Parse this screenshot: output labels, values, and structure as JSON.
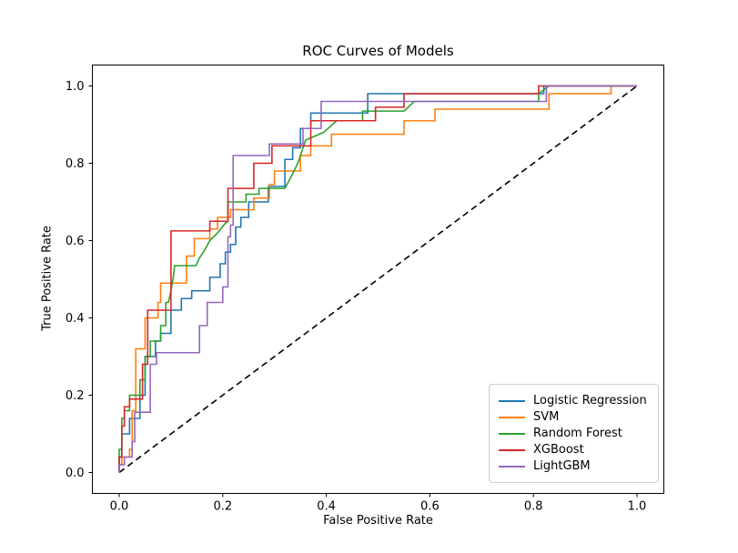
{
  "chart_data": {
    "type": "line",
    "title": "ROC Curves of Models",
    "xlabel": "False Positive Rate",
    "ylabel": "True Positive Rate",
    "xlim": [
      0,
      1
    ],
    "ylim": [
      0,
      1
    ],
    "grid": false,
    "x_ticks": {
      "values": [
        0.0,
        0.2,
        0.4,
        0.6,
        0.8,
        1.0
      ],
      "labels": [
        "0.0",
        "0.2",
        "0.4",
        "0.6",
        "0.8",
        "1.0"
      ]
    },
    "y_ticks": {
      "values": [
        0.0,
        0.2,
        0.4,
        0.6,
        0.8,
        1.0
      ],
      "labels": [
        "0.0",
        "0.2",
        "0.4",
        "0.6",
        "0.8",
        "1.0"
      ]
    },
    "legend": {
      "position": "lower right"
    },
    "reference_line": {
      "name": "chance-diagonal",
      "color": "#000000",
      "style": "dashed",
      "points": [
        [
          0,
          0
        ],
        [
          1,
          1
        ]
      ]
    },
    "series": [
      {
        "name": "Logistic Regression",
        "color": "#1f77b4",
        "points": [
          [
            0,
            0
          ],
          [
            0,
            0.04
          ],
          [
            0.005,
            0.04
          ],
          [
            0.005,
            0.1
          ],
          [
            0.02,
            0.1
          ],
          [
            0.02,
            0.14
          ],
          [
            0.04,
            0.14
          ],
          [
            0.04,
            0.2
          ],
          [
            0.05,
            0.2
          ],
          [
            0.05,
            0.3
          ],
          [
            0.07,
            0.3
          ],
          [
            0.07,
            0.34
          ],
          [
            0.08,
            0.34
          ],
          [
            0.08,
            0.36
          ],
          [
            0.1,
            0.36
          ],
          [
            0.1,
            0.42
          ],
          [
            0.12,
            0.42
          ],
          [
            0.12,
            0.45
          ],
          [
            0.14,
            0.45
          ],
          [
            0.14,
            0.47
          ],
          [
            0.175,
            0.47
          ],
          [
            0.175,
            0.505
          ],
          [
            0.195,
            0.505
          ],
          [
            0.195,
            0.54
          ],
          [
            0.205,
            0.54
          ],
          [
            0.205,
            0.57
          ],
          [
            0.215,
            0.57
          ],
          [
            0.215,
            0.59
          ],
          [
            0.225,
            0.59
          ],
          [
            0.225,
            0.635
          ],
          [
            0.235,
            0.635
          ],
          [
            0.235,
            0.66
          ],
          [
            0.25,
            0.66
          ],
          [
            0.25,
            0.7
          ],
          [
            0.288,
            0.7
          ],
          [
            0.288,
            0.74
          ],
          [
            0.32,
            0.74
          ],
          [
            0.32,
            0.81
          ],
          [
            0.335,
            0.81
          ],
          [
            0.335,
            0.84
          ],
          [
            0.35,
            0.84
          ],
          [
            0.35,
            0.89
          ],
          [
            0.37,
            0.89
          ],
          [
            0.37,
            0.93
          ],
          [
            0.48,
            0.93
          ],
          [
            0.48,
            0.98
          ],
          [
            0.82,
            0.98
          ],
          [
            0.82,
            1.0
          ],
          [
            1,
            1
          ]
        ]
      },
      {
        "name": "SVM",
        "color": "#ff7f0e",
        "points": [
          [
            0,
            0
          ],
          [
            0,
            0.02
          ],
          [
            0.005,
            0.02
          ],
          [
            0.005,
            0.04
          ],
          [
            0.02,
            0.04
          ],
          [
            0.02,
            0.06
          ],
          [
            0.025,
            0.06
          ],
          [
            0.025,
            0.16
          ],
          [
            0.032,
            0.16
          ],
          [
            0.032,
            0.32
          ],
          [
            0.05,
            0.32
          ],
          [
            0.05,
            0.4
          ],
          [
            0.075,
            0.4
          ],
          [
            0.075,
            0.44
          ],
          [
            0.08,
            0.44
          ],
          [
            0.08,
            0.49
          ],
          [
            0.13,
            0.49
          ],
          [
            0.13,
            0.56
          ],
          [
            0.145,
            0.56
          ],
          [
            0.145,
            0.605
          ],
          [
            0.175,
            0.605
          ],
          [
            0.175,
            0.63
          ],
          [
            0.19,
            0.63
          ],
          [
            0.19,
            0.66
          ],
          [
            0.215,
            0.66
          ],
          [
            0.215,
            0.68
          ],
          [
            0.26,
            0.68
          ],
          [
            0.26,
            0.71
          ],
          [
            0.29,
            0.71
          ],
          [
            0.29,
            0.745
          ],
          [
            0.3,
            0.745
          ],
          [
            0.3,
            0.78
          ],
          [
            0.35,
            0.78
          ],
          [
            0.35,
            0.82
          ],
          [
            0.37,
            0.82
          ],
          [
            0.37,
            0.845
          ],
          [
            0.41,
            0.845
          ],
          [
            0.41,
            0.875
          ],
          [
            0.55,
            0.875
          ],
          [
            0.55,
            0.91
          ],
          [
            0.61,
            0.91
          ],
          [
            0.61,
            0.94
          ],
          [
            0.83,
            0.94
          ],
          [
            0.83,
            0.98
          ],
          [
            0.95,
            0.98
          ],
          [
            0.95,
            1.0
          ],
          [
            1,
            1
          ]
        ]
      },
      {
        "name": "Random Forest",
        "color": "#2ca02c",
        "points": [
          [
            0,
            0
          ],
          [
            0,
            0.06
          ],
          [
            0.005,
            0.06
          ],
          [
            0.005,
            0.14
          ],
          [
            0.01,
            0.14
          ],
          [
            0.01,
            0.16
          ],
          [
            0.02,
            0.16
          ],
          [
            0.02,
            0.2
          ],
          [
            0.04,
            0.2
          ],
          [
            0.04,
            0.24
          ],
          [
            0.05,
            0.24
          ],
          [
            0.05,
            0.3
          ],
          [
            0.06,
            0.3
          ],
          [
            0.06,
            0.34
          ],
          [
            0.08,
            0.34
          ],
          [
            0.08,
            0.38
          ],
          [
            0.09,
            0.38
          ],
          [
            0.09,
            0.44
          ],
          [
            0.095,
            0.44
          ],
          [
            0.1,
            0.47
          ],
          [
            0.105,
            0.51
          ],
          [
            0.107,
            0.535
          ],
          [
            0.148,
            0.535
          ],
          [
            0.155,
            0.555
          ],
          [
            0.165,
            0.575
          ],
          [
            0.175,
            0.6
          ],
          [
            0.19,
            0.62
          ],
          [
            0.205,
            0.645
          ],
          [
            0.21,
            0.65
          ],
          [
            0.21,
            0.7
          ],
          [
            0.245,
            0.7
          ],
          [
            0.245,
            0.72
          ],
          [
            0.27,
            0.72
          ],
          [
            0.27,
            0.735
          ],
          [
            0.32,
            0.735
          ],
          [
            0.33,
            0.76
          ],
          [
            0.345,
            0.8
          ],
          [
            0.355,
            0.84
          ],
          [
            0.36,
            0.86
          ],
          [
            0.395,
            0.88
          ],
          [
            0.42,
            0.91
          ],
          [
            0.47,
            0.91
          ],
          [
            0.47,
            0.935
          ],
          [
            0.55,
            0.935
          ],
          [
            0.57,
            0.96
          ],
          [
            0.81,
            0.96
          ],
          [
            0.81,
            0.98
          ],
          [
            0.83,
            1.0
          ],
          [
            1,
            1
          ]
        ]
      },
      {
        "name": "XGBoost",
        "color": "#d62728",
        "points": [
          [
            0,
            0
          ],
          [
            0,
            0.04
          ],
          [
            0.005,
            0.04
          ],
          [
            0.005,
            0.12
          ],
          [
            0.01,
            0.12
          ],
          [
            0.01,
            0.17
          ],
          [
            0.02,
            0.17
          ],
          [
            0.02,
            0.19
          ],
          [
            0.045,
            0.19
          ],
          [
            0.045,
            0.28
          ],
          [
            0.055,
            0.28
          ],
          [
            0.055,
            0.42
          ],
          [
            0.1,
            0.42
          ],
          [
            0.1,
            0.625
          ],
          [
            0.175,
            0.625
          ],
          [
            0.175,
            0.65
          ],
          [
            0.21,
            0.65
          ],
          [
            0.21,
            0.735
          ],
          [
            0.26,
            0.735
          ],
          [
            0.26,
            0.8
          ],
          [
            0.295,
            0.8
          ],
          [
            0.295,
            0.845
          ],
          [
            0.37,
            0.845
          ],
          [
            0.37,
            0.91
          ],
          [
            0.495,
            0.91
          ],
          [
            0.495,
            0.945
          ],
          [
            0.55,
            0.945
          ],
          [
            0.55,
            0.98
          ],
          [
            0.81,
            0.98
          ],
          [
            0.81,
            1.0
          ],
          [
            1,
            1
          ]
        ]
      },
      {
        "name": "LightGBM",
        "color": "#9467bd",
        "points": [
          [
            0,
            0
          ],
          [
            0,
            0.02
          ],
          [
            0.01,
            0.02
          ],
          [
            0.01,
            0.04
          ],
          [
            0.025,
            0.04
          ],
          [
            0.025,
            0.08
          ],
          [
            0.03,
            0.08
          ],
          [
            0.03,
            0.156
          ],
          [
            0.06,
            0.156
          ],
          [
            0.06,
            0.28
          ],
          [
            0.072,
            0.28
          ],
          [
            0.072,
            0.31
          ],
          [
            0.155,
            0.31
          ],
          [
            0.155,
            0.38
          ],
          [
            0.17,
            0.38
          ],
          [
            0.17,
            0.44
          ],
          [
            0.2,
            0.44
          ],
          [
            0.2,
            0.48
          ],
          [
            0.21,
            0.48
          ],
          [
            0.21,
            0.61
          ],
          [
            0.215,
            0.61
          ],
          [
            0.215,
            0.64
          ],
          [
            0.22,
            0.64
          ],
          [
            0.22,
            0.82
          ],
          [
            0.29,
            0.82
          ],
          [
            0.29,
            0.85
          ],
          [
            0.355,
            0.85
          ],
          [
            0.355,
            0.89
          ],
          [
            0.39,
            0.89
          ],
          [
            0.39,
            0.96
          ],
          [
            0.825,
            0.96
          ],
          [
            0.825,
            1.0
          ],
          [
            1,
            1
          ]
        ]
      }
    ]
  }
}
